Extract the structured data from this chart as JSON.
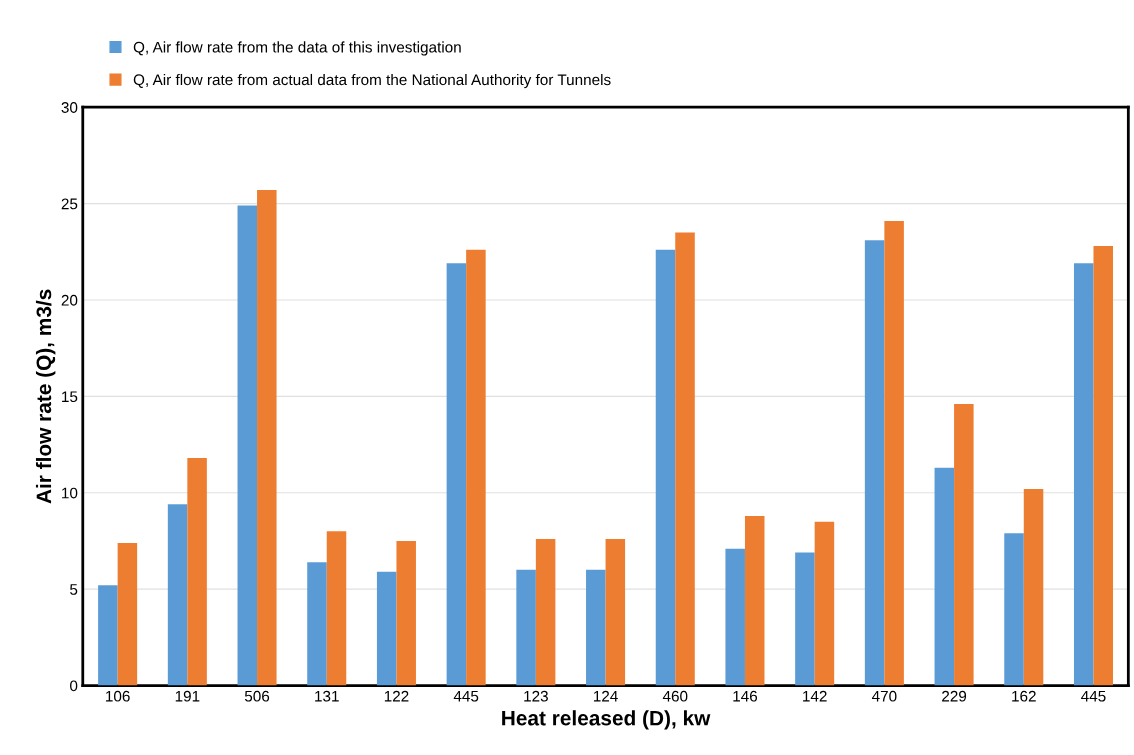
{
  "chart_data": {
    "type": "bar",
    "xlabel": "Heat released (D), kw",
    "ylabel": "Air flow rate (Q), m3/s",
    "categories": [
      "106",
      "191",
      "506",
      "131",
      "122",
      "445",
      "123",
      "124",
      "460",
      "146",
      "142",
      "470",
      "229",
      "162",
      "445"
    ],
    "series": [
      {
        "name": "Q, Air flow rate from the data of this investigation",
        "color": "#5b9bd5",
        "values": [
          5.2,
          9.4,
          24.9,
          6.4,
          5.9,
          21.9,
          6.0,
          6.0,
          22.6,
          7.1,
          6.9,
          23.1,
          11.3,
          7.9,
          21.9
        ]
      },
      {
        "name": "Q, Air flow rate from actual data from the National Authority for Tunnels",
        "color": "#ed7d31",
        "values": [
          7.4,
          11.8,
          25.7,
          8.0,
          7.5,
          22.6,
          7.6,
          7.6,
          23.5,
          8.8,
          8.5,
          24.1,
          14.6,
          10.2,
          22.8
        ]
      }
    ],
    "ylim": [
      0,
      30
    ],
    "yticks": [
      0,
      5,
      10,
      15,
      20,
      25,
      30
    ],
    "grid": "y",
    "legend": "top left"
  }
}
